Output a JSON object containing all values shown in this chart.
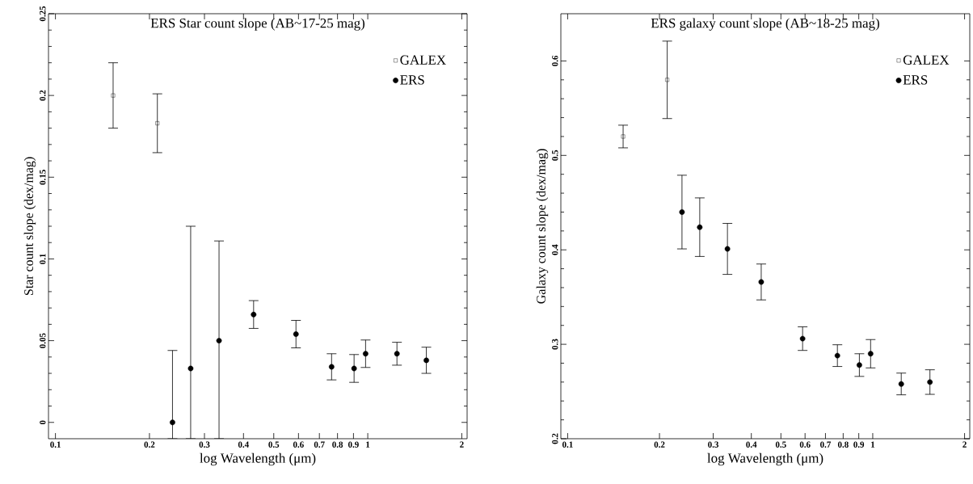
{
  "chart_data": [
    {
      "type": "scatter",
      "title": "ERS Star count slope (AB~17-25 mag)",
      "xlabel": "log Wavelength (μm)",
      "ylabel": "Star count slope (dex/mag)",
      "log": "x",
      "legend": "top right",
      "xlim": [
        0.095,
        2.08
      ],
      "ylim": [
        -0.01,
        0.25
      ],
      "xticks": [
        0.1,
        0.2,
        0.3,
        0.4,
        0.5,
        0.6,
        0.7,
        0.8,
        0.9,
        1,
        2
      ],
      "yticks": [
        0,
        0.05,
        0.1,
        0.15,
        0.2,
        0.25
      ],
      "series": [
        {
          "name": "GALEX",
          "color": "#000000",
          "marker": "square",
          "x": [
            0.153,
            0.212
          ],
          "values": [
            0.2,
            0.183
          ],
          "errors": [
            0.02,
            0.018
          ]
        },
        {
          "name": "ERS",
          "color": "#000000",
          "marker": "circle",
          "x": [
            0.237,
            0.271,
            0.334,
            0.431,
            0.589,
            0.766,
            0.904,
            0.984,
            1.24,
            1.54
          ],
          "values": [
            0.0,
            0.033,
            0.05,
            0.066,
            0.054,
            0.034,
            0.033,
            0.042,
            0.042,
            0.038
          ],
          "errors": [
            [
              -0.01,
              0.044
            ],
            [
              -0.01,
              0.12
            ],
            [
              -0.01,
              0.111
            ],
            0.0085,
            0.0084,
            0.008,
            0.0085,
            0.0084,
            0.007,
            0.008
          ]
        }
      ]
    },
    {
      "type": "scatter",
      "title": "ERS galaxy count slope (AB~18-25 mag)",
      "xlabel": "log Wavelength (μm)",
      "ylabel": "Galaxy count slope (dex/mag)",
      "log": "x",
      "legend": "top right",
      "xlim": [
        0.095,
        2.08
      ],
      "ylim": [
        0.2,
        0.65
      ],
      "xticks": [
        0.1,
        0.2,
        0.3,
        0.4,
        0.5,
        0.6,
        0.7,
        0.8,
        0.9,
        1,
        2
      ],
      "yticks": [
        0.2,
        0.3,
        0.4,
        0.5,
        0.6
      ],
      "series": [
        {
          "name": "GALEX",
          "color": "#000000",
          "marker": "square",
          "x": [
            0.152,
            0.212
          ],
          "values": [
            0.52,
            0.58
          ],
          "errors": [
            0.012,
            0.041
          ]
        },
        {
          "name": "ERS",
          "color": "#000000",
          "marker": "circle",
          "x": [
            0.237,
            0.271,
            0.334,
            0.431,
            0.589,
            0.766,
            0.904,
            0.984,
            1.24,
            1.54
          ],
          "values": [
            0.44,
            0.424,
            0.401,
            0.366,
            0.306,
            0.288,
            0.278,
            0.29,
            0.258,
            0.26
          ],
          "errors": [
            0.039,
            0.031,
            0.027,
            0.019,
            0.0125,
            0.0115,
            0.012,
            0.015,
            0.0115,
            0.013
          ]
        }
      ]
    }
  ]
}
